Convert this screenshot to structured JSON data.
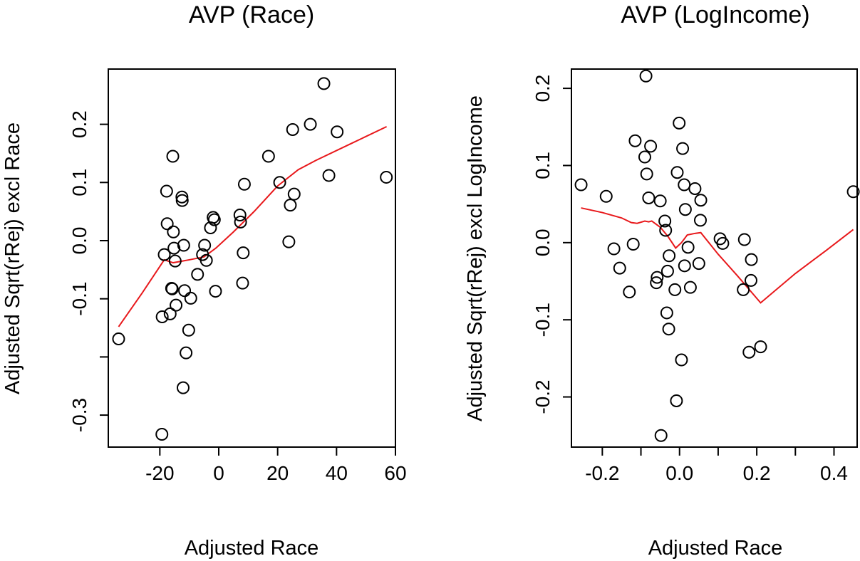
{
  "colors": {
    "smooth": "#e8181b",
    "points": "#000000",
    "axis": "#000000"
  },
  "chart_data": [
    {
      "type": "scatter",
      "title": "AVP (Race)",
      "xlabel": "Adjusted Race",
      "ylabel": "Adjusted Sqrt(rRej) excl Race",
      "xlim": [
        -37.5,
        60
      ],
      "ylim": [
        -0.355,
        0.295
      ],
      "xticks": [
        -20,
        0,
        20,
        40,
        60
      ],
      "xtick_labels": [
        "-20",
        "0",
        "20",
        "40",
        "60"
      ],
      "yticks": [
        -0.3,
        -0.2,
        -0.1,
        0.0,
        0.1,
        0.2
      ],
      "ytick_labels": [
        "-0.3",
        "",
        "-0.1",
        "0.0",
        "0.1",
        "0.2"
      ],
      "grid": false,
      "points": [
        {
          "x": -34,
          "y": -0.169
        },
        {
          "x": -19.3,
          "y": -0.333
        },
        {
          "x": -19.2,
          "y": -0.131
        },
        {
          "x": -18.5,
          "y": -0.024
        },
        {
          "x": -17.7,
          "y": 0.085
        },
        {
          "x": -17.5,
          "y": 0.029
        },
        {
          "x": -16.5,
          "y": -0.126
        },
        {
          "x": -16,
          "y": -0.082
        },
        {
          "x": -15.8,
          "y": -0.083
        },
        {
          "x": -15.6,
          "y": 0.145
        },
        {
          "x": -15.4,
          "y": 0.015
        },
        {
          "x": -15.2,
          "y": -0.013
        },
        {
          "x": -14.8,
          "y": -0.035
        },
        {
          "x": -14.5,
          "y": -0.111
        },
        {
          "x": -12.5,
          "y": 0.075
        },
        {
          "x": -12.4,
          "y": 0.069
        },
        {
          "x": -12.1,
          "y": -0.253
        },
        {
          "x": -11.9,
          "y": -0.008
        },
        {
          "x": -11.6,
          "y": -0.086
        },
        {
          "x": -11.1,
          "y": -0.193
        },
        {
          "x": -10.2,
          "y": -0.154
        },
        {
          "x": -9.5,
          "y": -0.099
        },
        {
          "x": -7.2,
          "y": -0.058
        },
        {
          "x": -5.5,
          "y": -0.024
        },
        {
          "x": -4.8,
          "y": -0.008
        },
        {
          "x": -4.2,
          "y": -0.034
        },
        {
          "x": -2.8,
          "y": 0.022
        },
        {
          "x": -1.9,
          "y": 0.04
        },
        {
          "x": -1.5,
          "y": 0.036
        },
        {
          "x": -1.1,
          "y": -0.087
        },
        {
          "x": 7.2,
          "y": 0.044
        },
        {
          "x": 7.4,
          "y": 0.032
        },
        {
          "x": 8.1,
          "y": -0.073
        },
        {
          "x": 8.3,
          "y": -0.021
        },
        {
          "x": 8.7,
          "y": 0.097
        },
        {
          "x": 16.9,
          "y": 0.145
        },
        {
          "x": 20.7,
          "y": 0.1
        },
        {
          "x": 23.8,
          "y": -0.002
        },
        {
          "x": 24.3,
          "y": 0.061
        },
        {
          "x": 25.1,
          "y": 0.191
        },
        {
          "x": 25.6,
          "y": 0.08
        },
        {
          "x": 31.1,
          "y": 0.2
        },
        {
          "x": 35.7,
          "y": 0.27
        },
        {
          "x": 37.4,
          "y": 0.112
        },
        {
          "x": 40.2,
          "y": 0.187
        },
        {
          "x": 56.9,
          "y": 0.109
        }
      ],
      "smooth_line": [
        {
          "x": -34,
          "y": -0.148
        },
        {
          "x": -26,
          "y": -0.09
        },
        {
          "x": -18.5,
          "y": -0.033
        },
        {
          "x": -15.5,
          "y": -0.038
        },
        {
          "x": -10,
          "y": -0.033
        },
        {
          "x": -5,
          "y": -0.028
        },
        {
          "x": -1,
          "y": -0.013
        },
        {
          "x": 5,
          "y": 0.015
        },
        {
          "x": 12,
          "y": 0.05
        },
        {
          "x": 20,
          "y": 0.094
        },
        {
          "x": 27,
          "y": 0.122
        },
        {
          "x": 33,
          "y": 0.138
        },
        {
          "x": 45,
          "y": 0.167
        },
        {
          "x": 57,
          "y": 0.196
        }
      ]
    },
    {
      "type": "scatter",
      "title": "AVP (LogIncome)",
      "xlabel": "Adjusted Race",
      "ylabel": "Adjusted Sqrt(rRej) excl LogIncome",
      "xlim": [
        -0.28,
        0.46
      ],
      "ylim": [
        -0.265,
        0.225
      ],
      "xticks": [
        -0.2,
        -0.1,
        0.0,
        0.1,
        0.2,
        0.3,
        0.4
      ],
      "xtick_labels": [
        "-0.2",
        "",
        "0.0",
        "",
        "0.2",
        "",
        "0.4"
      ],
      "yticks": [
        -0.2,
        -0.1,
        0.0,
        0.1,
        0.2
      ],
      "ytick_labels": [
        "-0.2",
        "-0.1",
        "0.0",
        "0.1",
        "0.2"
      ],
      "grid": false,
      "points": [
        {
          "x": -0.255,
          "y": 0.075
        },
        {
          "x": -0.19,
          "y": 0.06
        },
        {
          "x": -0.17,
          "y": -0.008
        },
        {
          "x": -0.155,
          "y": -0.033
        },
        {
          "x": -0.13,
          "y": -0.064
        },
        {
          "x": -0.12,
          "y": -0.002
        },
        {
          "x": -0.115,
          "y": 0.132
        },
        {
          "x": -0.09,
          "y": 0.111
        },
        {
          "x": -0.085,
          "y": 0.089
        },
        {
          "x": -0.087,
          "y": 0.216
        },
        {
          "x": -0.075,
          "y": 0.125
        },
        {
          "x": -0.08,
          "y": 0.058
        },
        {
          "x": -0.06,
          "y": -0.052
        },
        {
          "x": -0.058,
          "y": -0.045
        },
        {
          "x": -0.05,
          "y": 0.054
        },
        {
          "x": -0.048,
          "y": -0.25
        },
        {
          "x": -0.038,
          "y": 0.028
        },
        {
          "x": -0.036,
          "y": 0.016
        },
        {
          "x": -0.033,
          "y": -0.091
        },
        {
          "x": -0.031,
          "y": -0.037
        },
        {
          "x": -0.028,
          "y": -0.112
        },
        {
          "x": -0.027,
          "y": -0.017
        },
        {
          "x": -0.012,
          "y": -0.061
        },
        {
          "x": -0.008,
          "y": -0.205
        },
        {
          "x": -0.006,
          "y": 0.091
        },
        {
          "x": -0.001,
          "y": 0.155
        },
        {
          "x": 0.005,
          "y": -0.152
        },
        {
          "x": 0.008,
          "y": 0.122
        },
        {
          "x": 0.012,
          "y": 0.075
        },
        {
          "x": 0.015,
          "y": 0.043
        },
        {
          "x": 0.013,
          "y": -0.03
        },
        {
          "x": 0.022,
          "y": -0.006
        },
        {
          "x": 0.028,
          "y": -0.058
        },
        {
          "x": 0.04,
          "y": 0.07
        },
        {
          "x": 0.05,
          "y": -0.027
        },
        {
          "x": 0.055,
          "y": 0.055
        },
        {
          "x": 0.054,
          "y": 0.029
        },
        {
          "x": 0.105,
          "y": 0.005
        },
        {
          "x": 0.112,
          "y": -0.001
        },
        {
          "x": 0.165,
          "y": -0.061
        },
        {
          "x": 0.168,
          "y": 0.004
        },
        {
          "x": 0.18,
          "y": -0.142
        },
        {
          "x": 0.185,
          "y": -0.049
        },
        {
          "x": 0.186,
          "y": -0.022
        },
        {
          "x": 0.21,
          "y": -0.135
        },
        {
          "x": 0.45,
          "y": 0.066
        }
      ],
      "smooth_line": [
        {
          "x": -0.255,
          "y": 0.045
        },
        {
          "x": -0.2,
          "y": 0.039
        },
        {
          "x": -0.15,
          "y": 0.032
        },
        {
          "x": -0.125,
          "y": 0.026
        },
        {
          "x": -0.11,
          "y": 0.025
        },
        {
          "x": -0.09,
          "y": 0.028
        },
        {
          "x": -0.08,
          "y": 0.027
        },
        {
          "x": -0.072,
          "y": 0.028
        },
        {
          "x": -0.05,
          "y": 0.02
        },
        {
          "x": -0.03,
          "y": 0.008
        },
        {
          "x": -0.01,
          "y": -0.007
        },
        {
          "x": 0.005,
          "y": 0.0
        },
        {
          "x": 0.02,
          "y": 0.01
        },
        {
          "x": 0.04,
          "y": 0.012
        },
        {
          "x": 0.055,
          "y": 0.013
        },
        {
          "x": 0.1,
          "y": -0.015
        },
        {
          "x": 0.15,
          "y": -0.043
        },
        {
          "x": 0.21,
          "y": -0.078
        },
        {
          "x": 0.3,
          "y": -0.04
        },
        {
          "x": 0.38,
          "y": -0.01
        },
        {
          "x": 0.45,
          "y": 0.017
        }
      ]
    }
  ]
}
